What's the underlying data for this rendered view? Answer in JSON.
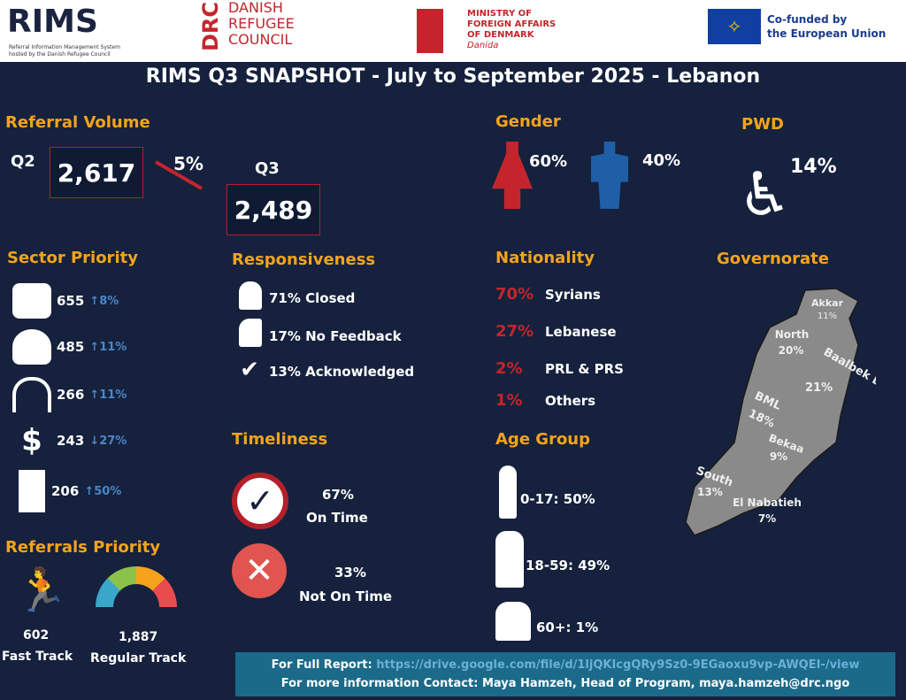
{
  "header": {
    "rims": "RIMS",
    "rims_sub1": "Referral Information Management System",
    "rims_sub2": "hosted by the Danish Refugee Council",
    "drc": "DRC",
    "drc_lines": [
      "DANISH",
      "REFUGEE",
      "COUNCIL"
    ],
    "mfa_lines": [
      "MINISTRY OF",
      "FOREIGN AFFAIRS",
      "OF DENMARK"
    ],
    "mfa_sub": "Danida",
    "eu_lines": [
      "Co-funded by",
      "the European Union"
    ]
  },
  "title": "RIMS Q3 SNAPSHOT - July to September 2025 - Lebanon",
  "referral_volume": {
    "heading": "Referral Volume",
    "q2_label": "Q2",
    "q2": "2,617",
    "change": "5%",
    "q3_label": "Q3",
    "q3": "2,489"
  },
  "sector_priority": {
    "heading": "Sector Priority",
    "items": [
      {
        "icon": "child-protection-icon",
        "value": "655",
        "dir": "up",
        "change": "8%"
      },
      {
        "icon": "protection-icon",
        "value": "485",
        "dir": "up",
        "change": "11%"
      },
      {
        "icon": "shelter-icon",
        "value": "266",
        "dir": "up",
        "change": "11%"
      },
      {
        "icon": "health-icon",
        "value": "243",
        "dir": "down",
        "change": "27%"
      },
      {
        "icon": "documentation-icon",
        "value": "206",
        "dir": "up",
        "change": "50%"
      }
    ]
  },
  "responsiveness": {
    "heading": "Responsiveness",
    "items": [
      "71% Closed",
      "17% No Feedback",
      "13% Acknowledged"
    ]
  },
  "timeliness": {
    "heading": "Timeliness",
    "on_time_pct": "67%",
    "on_time": "On Time",
    "not_pct": "33%",
    "not": "Not On Time"
  },
  "referrals_priority": {
    "heading": "Referrals Priority",
    "fast_value": "602",
    "fast": "Fast Track",
    "regular_value": "1,887",
    "regular": "Regular Track"
  },
  "gender": {
    "heading": "Gender",
    "female": "60%",
    "male": "40%"
  },
  "pwd": {
    "heading": "PWD",
    "value": "14%"
  },
  "nationality": {
    "heading": "Nationality",
    "items": [
      {
        "pct": "70%",
        "label": "Syrians"
      },
      {
        "pct": "27%",
        "label": "Lebanese"
      },
      {
        "pct": "2%",
        "label": "PRL & PRS"
      },
      {
        "pct": "1%",
        "label": "Others"
      }
    ]
  },
  "age_group": {
    "heading": "Age Group",
    "items": [
      "0-17: 50%",
      "18-59: 49%",
      "60+: 1%"
    ]
  },
  "governorate": {
    "heading": "Governorate",
    "regions": [
      {
        "name": "Akkar",
        "pct": "11%"
      },
      {
        "name": "North",
        "pct": "20%"
      },
      {
        "name": "Baalbek El Hermel",
        "pct": "21%"
      },
      {
        "name": "BML",
        "pct": "18%"
      },
      {
        "name": "Bekaa",
        "pct": "9%"
      },
      {
        "name": "South",
        "pct": "13%"
      },
      {
        "name": "El Nabatieh",
        "pct": "7%"
      }
    ]
  },
  "footer": {
    "report_label": "For Full Report:",
    "report_link": "https://drive.google.com/file/d/1ljQKIcgQRy9Sz0-9EGaoxu9vp-AWQEI-/view",
    "contact": "For more information Contact: Maya Hamzeh, Head of Program, maya.hamzeh@drc.ngo"
  }
}
